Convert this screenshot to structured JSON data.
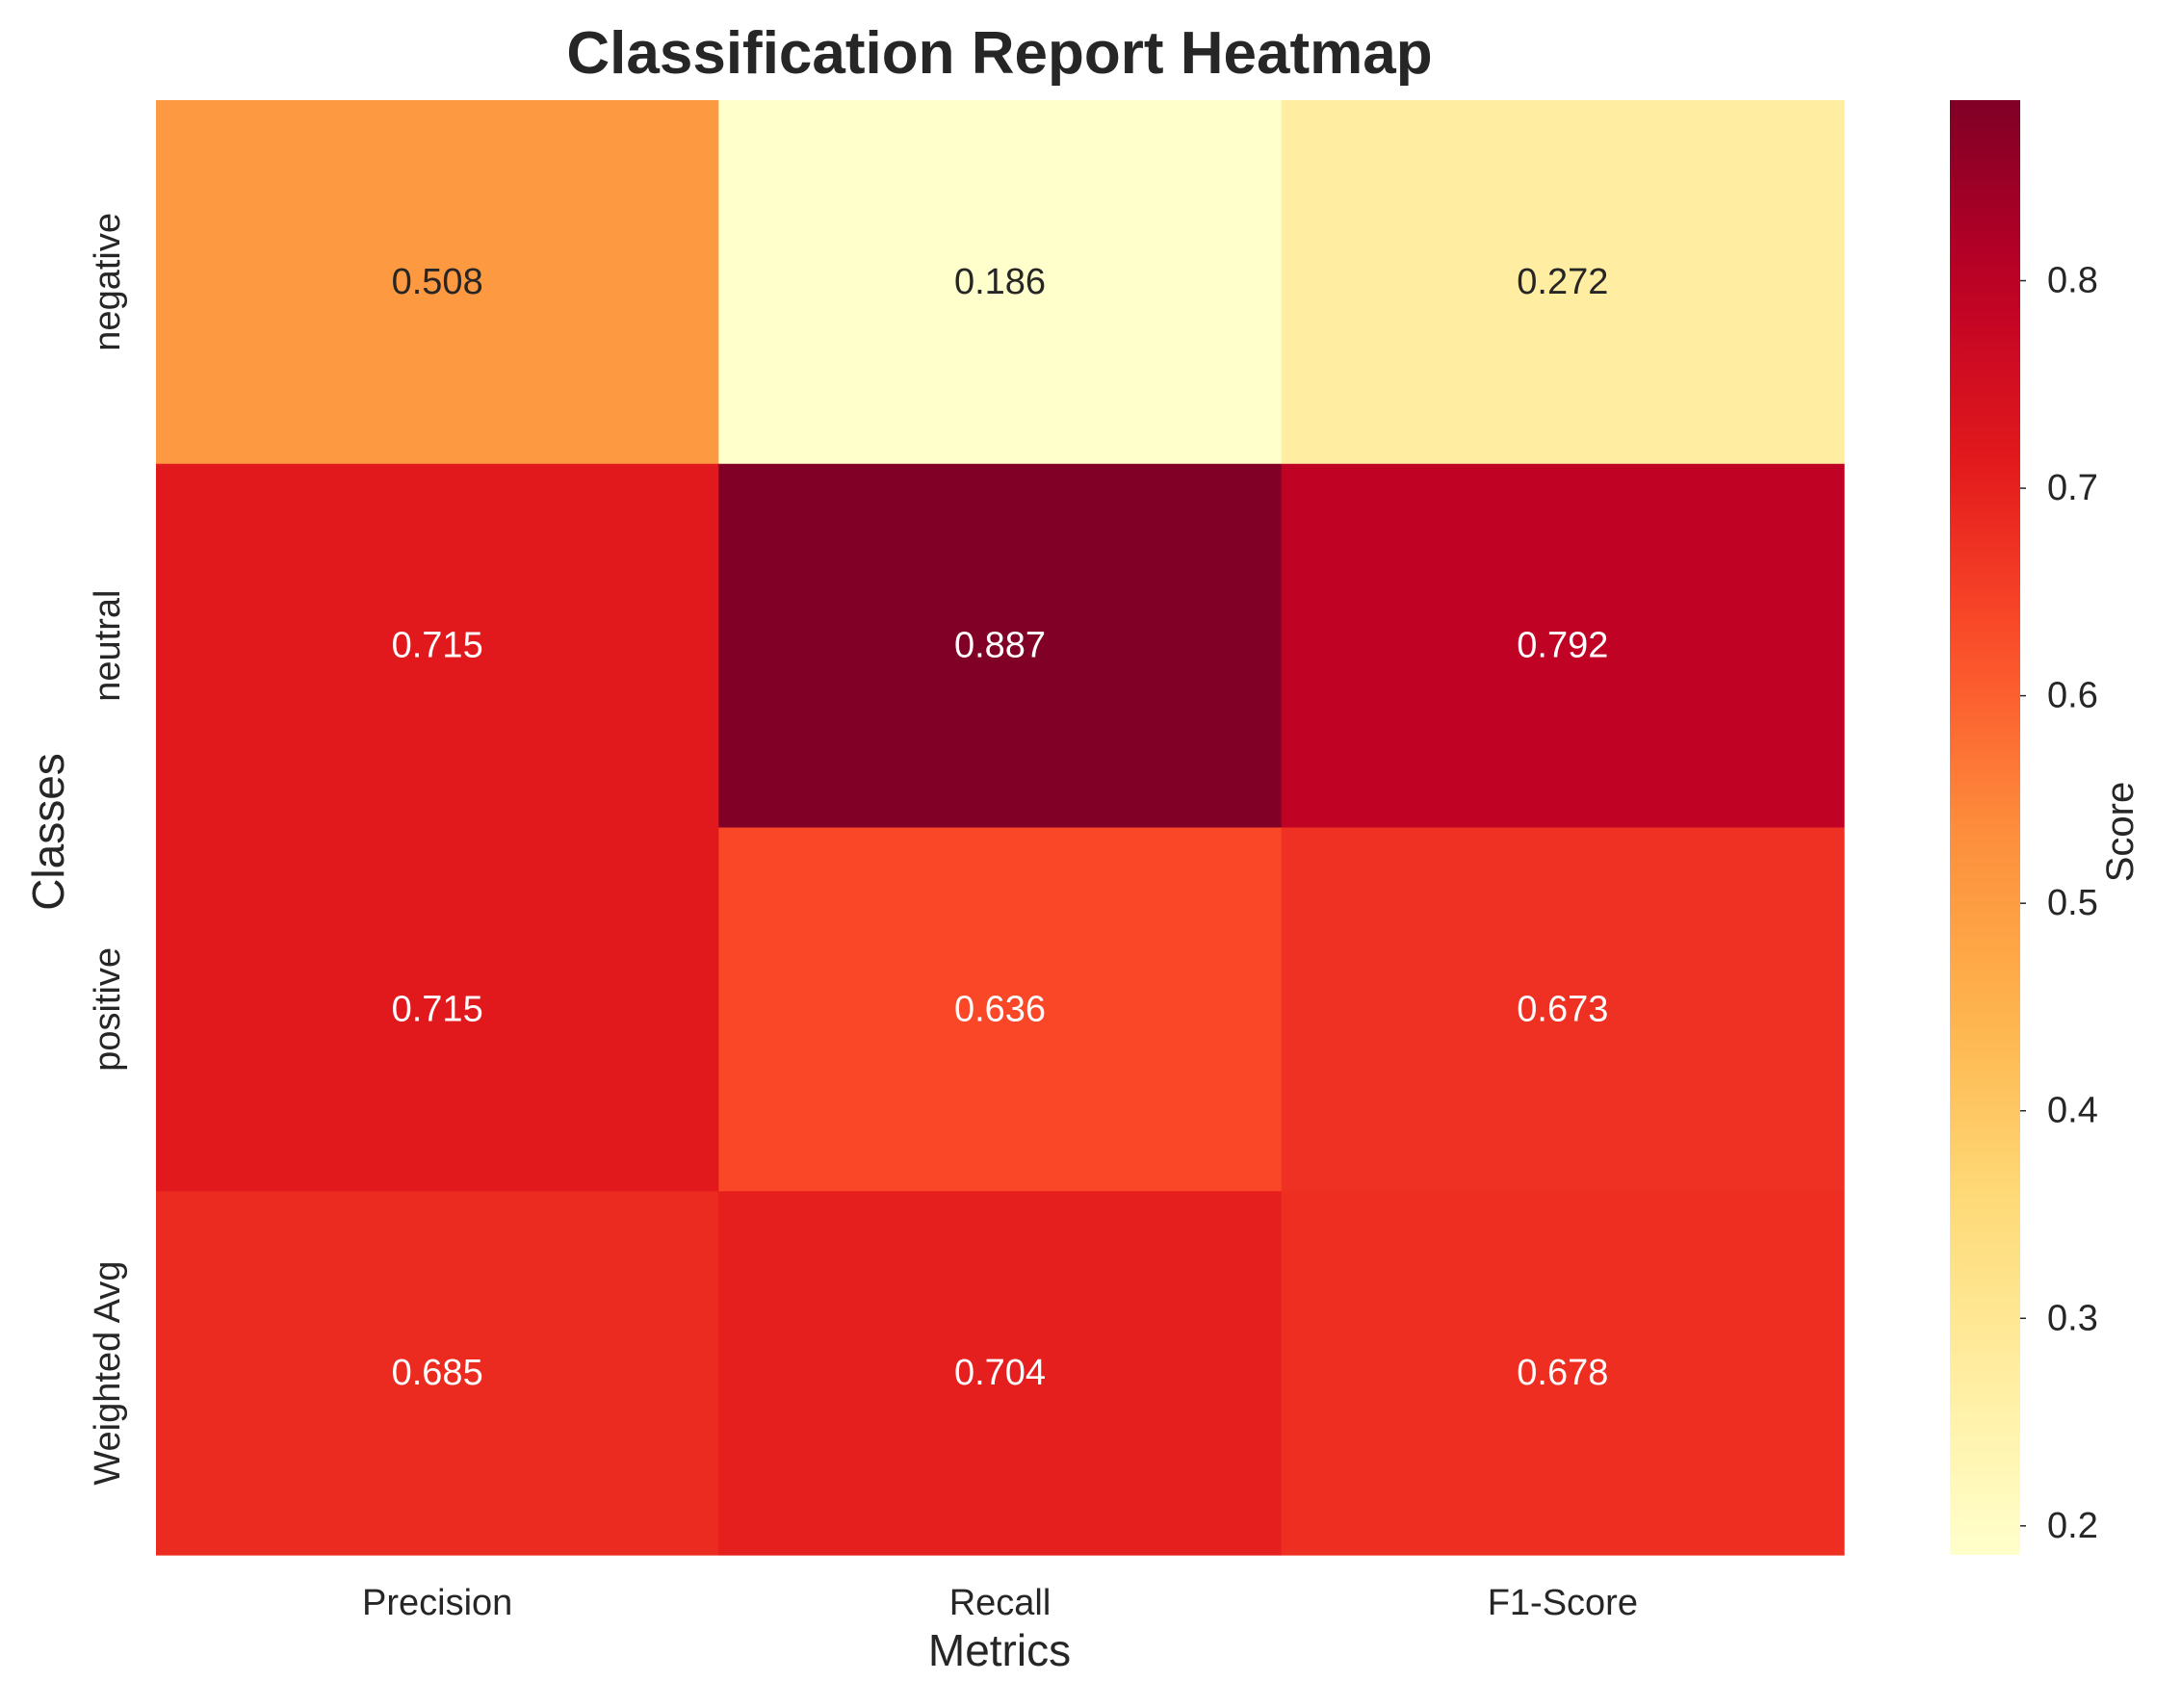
{
  "chart_data": {
    "type": "heatmap",
    "title": "Classification Report Heatmap",
    "xlabel": "Metrics",
    "ylabel": "Classes",
    "x_categories": [
      "Precision",
      "Recall",
      "F1-Score"
    ],
    "y_categories": [
      "negative",
      "neutral",
      "positive",
      "Weighted Avg"
    ],
    "values": [
      [
        0.508,
        0.186,
        0.272
      ],
      [
        0.715,
        0.887,
        0.792
      ],
      [
        0.715,
        0.636,
        0.673
      ],
      [
        0.685,
        0.704,
        0.678
      ]
    ],
    "value_format": "0.000",
    "colorscale": "YlOrRd",
    "colorbar": {
      "label": "Score",
      "range": [
        0.186,
        0.887
      ],
      "ticks": [
        "0.2",
        "0.3",
        "0.4",
        "0.5",
        "0.6",
        "0.7",
        "0.8"
      ]
    },
    "grid": false
  }
}
